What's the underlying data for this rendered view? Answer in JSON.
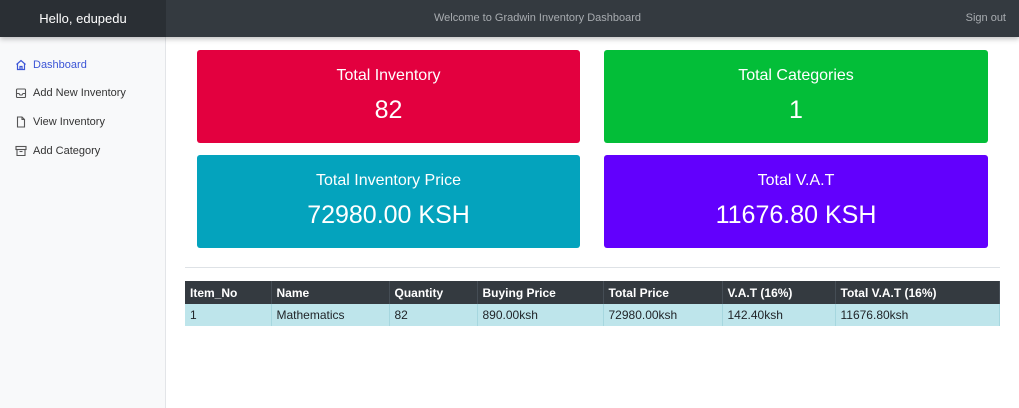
{
  "header": {
    "greeting": "Hello, edupedu",
    "welcome": "Welcome to Gradwin Inventory Dashboard",
    "signout_label": "Sign out"
  },
  "sidebar": {
    "items": [
      {
        "label": "Dashboard",
        "icon": "home-icon",
        "active": true
      },
      {
        "label": "Add New Inventory",
        "icon": "inbox-icon",
        "active": false
      },
      {
        "label": "View Inventory",
        "icon": "file-icon",
        "active": false
      },
      {
        "label": "Add Category",
        "icon": "archive-icon",
        "active": false
      }
    ]
  },
  "cards": [
    {
      "title": "Total Inventory",
      "value": "82",
      "color": "#e3003f"
    },
    {
      "title": "Total Categories",
      "value": "1",
      "color": "#03be38"
    },
    {
      "title": "Total Inventory Price",
      "value": "72980.00 KSH",
      "color": "#04a3bd"
    },
    {
      "title": "Total V.A.T",
      "value": "11676.80 KSH",
      "color": "#6200fd"
    }
  ],
  "table": {
    "columns": [
      "Item_No",
      "Name",
      "Quantity",
      "Buying Price",
      "Total Price",
      "V.A.T (16%)",
      "Total V.A.T (16%)"
    ],
    "rows": [
      [
        "1",
        "Mathematics",
        "82",
        "890.00ksh",
        "72980.00ksh",
        "142.40ksh",
        "11676.80ksh"
      ]
    ]
  },
  "colors": {
    "topbar": "#343a40",
    "active_link": "#3b55d6",
    "row_highlight": "#bee5eb"
  }
}
